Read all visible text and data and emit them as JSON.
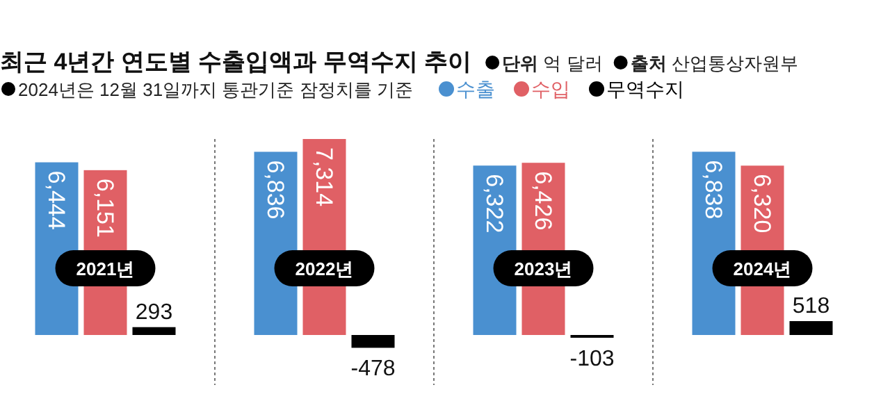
{
  "chart_data": {
    "type": "bar",
    "title": "최근 4년간 연도별 수출입액과 무역수지 추이",
    "subtitle": "2024년은 12월 31일까지 통관기준 잠정치를 기준",
    "annotations": [
      "**단위** 억 달러",
      "**출처** 산업통상자원부"
    ],
    "categories": [
      "2021년",
      "2022년",
      "2023년",
      "2024년"
    ],
    "legend": "top",
    "series": [
      {
        "name": "수출",
        "color": "#4a90d0",
        "values": [
          6444,
          6836,
          6322,
          6838
        ],
        "value_labels": [
          "6,444",
          "6,836",
          "6,322",
          "6,838"
        ]
      },
      {
        "name": "수입",
        "color": "#e06065",
        "values": [
          6151,
          7314,
          6426,
          6320
        ],
        "value_labels": [
          "6,151",
          "7,314",
          "6,426",
          "6,320"
        ]
      },
      {
        "name": "무역수지",
        "color": "#000000",
        "values": [
          293,
          -478,
          -103,
          518
        ],
        "value_labels": [
          "293",
          "-478",
          "-103",
          "518"
        ]
      }
    ]
  }
}
